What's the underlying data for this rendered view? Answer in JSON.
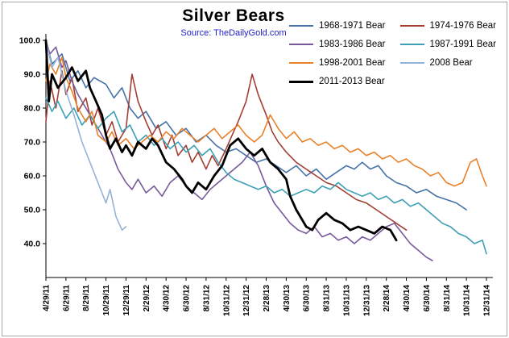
{
  "chart_data": {
    "type": "line",
    "title": "Silver Bears",
    "source": "Source: TheDailyGold.com",
    "xlabel": "",
    "ylabel": "",
    "ylim": [
      30,
      100
    ],
    "yticks": [
      40,
      50,
      60,
      70,
      80,
      90,
      100
    ],
    "ytick_labels": [
      "40.0",
      "50.0",
      "60.0",
      "70.0",
      "80.0",
      "90.0",
      "100.0"
    ],
    "grid": false,
    "legend_position": "top-right",
    "x_tick_labels": [
      "4/29/11",
      "6/29/11",
      "8/29/11",
      "10/29/11",
      "12/29/11",
      "2/29/12",
      "4/30/12",
      "6/30/12",
      "8/31/12",
      "10/31/12",
      "12/31/12",
      "2/28/13",
      "4/30/13",
      "6/30/13",
      "8/31/13",
      "10/31/13",
      "12/31/13",
      "2/28/14",
      "4/30/14",
      "6/30/14",
      "8/31/14",
      "10/31/14",
      "12/31/14"
    ],
    "series": [
      {
        "name": "1968-1971 Bear",
        "color": "#4572A7",
        "width": 1.6,
        "x": [
          0,
          0.3,
          0.8,
          1.2,
          1.6,
          2.0,
          2.4,
          3.0,
          3.4,
          3.8,
          4.2,
          4.6,
          5.0,
          5.5,
          6.0,
          6.5,
          7.0,
          7.5,
          8.0,
          8.5,
          9.0,
          9.5,
          10.0,
          10.5,
          11.0,
          11.5,
          12.0,
          12.5,
          13.0,
          13.5,
          14.0,
          14.5,
          15.0,
          15.4,
          15.8,
          16.2,
          16.6,
          17.0,
          17.5,
          18.0,
          18.5,
          19.0,
          19.5,
          20.0,
          20.5,
          21.0
        ],
        "values": [
          100,
          93,
          96,
          88,
          91,
          86,
          89,
          87,
          83,
          86,
          80,
          77,
          79,
          74,
          76,
          72,
          74,
          70,
          72,
          69,
          67,
          68,
          66,
          64,
          65,
          63,
          61,
          63,
          60,
          62,
          59,
          61,
          63,
          62,
          64,
          62,
          63,
          60,
          58,
          57,
          55,
          56,
          54,
          53,
          52,
          50
        ]
      },
      {
        "name": "1974-1976 Bear",
        "color": "#A33E33",
        "width": 1.6,
        "x": [
          0,
          0.2,
          0.5,
          0.8,
          1.0,
          1.3,
          1.6,
          2.0,
          2.3,
          2.6,
          3.0,
          3.3,
          3.6,
          4.0,
          4.3,
          4.6,
          5.0,
          5.3,
          5.6,
          6.0,
          6.3,
          6.6,
          7.0,
          7.3,
          7.6,
          8.0,
          8.3,
          8.6,
          9.0,
          9.3,
          9.6,
          10.0,
          10.3,
          10.6,
          11.0,
          11.3,
          11.6,
          12.0,
          12.5,
          13.0,
          13.5,
          14.0,
          14.5,
          15.0,
          15.5,
          16.0,
          16.5,
          17.0,
          17.5,
          18.0
        ],
        "values": [
          76,
          88,
          80,
          91,
          84,
          89,
          79,
          83,
          75,
          80,
          72,
          76,
          70,
          74,
          90,
          82,
          76,
          72,
          75,
          68,
          72,
          66,
          69,
          64,
          67,
          62,
          66,
          63,
          68,
          72,
          76,
          82,
          90,
          84,
          78,
          73,
          70,
          67,
          64,
          62,
          60,
          58,
          57,
          55,
          53,
          52,
          50,
          48,
          46,
          44
        ]
      },
      {
        "name": "1983-1986 Bear",
        "color": "#775A9B",
        "width": 1.6,
        "x": [
          0,
          0.2,
          0.5,
          0.8,
          1.0,
          1.3,
          1.6,
          2.0,
          2.4,
          2.8,
          3.2,
          3.6,
          4.0,
          4.3,
          4.6,
          5.0,
          5.4,
          5.8,
          6.2,
          6.6,
          7.0,
          7.4,
          7.8,
          8.2,
          8.6,
          9.0,
          9.4,
          9.8,
          10.2,
          10.6,
          11.0,
          11.4,
          11.8,
          12.2,
          12.6,
          13.0,
          13.4,
          13.8,
          14.2,
          14.6,
          15.0,
          15.4,
          15.8,
          16.2,
          16.6,
          17.0,
          17.4,
          17.8,
          18.2,
          18.6,
          19.0,
          19.3
        ],
        "values": [
          100,
          96,
          98,
          92,
          94,
          88,
          84,
          80,
          76,
          72,
          68,
          62,
          58,
          56,
          59,
          55,
          57,
          54,
          58,
          60,
          57,
          55,
          53,
          56,
          58,
          60,
          62,
          64,
          67,
          63,
          57,
          52,
          49,
          46,
          44,
          43,
          45,
          42,
          43,
          41,
          42,
          40,
          42,
          41,
          43,
          45,
          46,
          43,
          40,
          38,
          36,
          35
        ]
      },
      {
        "name": "1987-1991 Bear",
        "color": "#3BA0B5",
        "width": 1.6,
        "x": [
          0,
          0.3,
          0.6,
          1.0,
          1.4,
          1.8,
          2.2,
          2.6,
          3.0,
          3.4,
          3.8,
          4.2,
          4.6,
          5.0,
          5.4,
          5.8,
          6.2,
          6.6,
          7.0,
          7.4,
          7.8,
          8.2,
          8.6,
          9.0,
          9.4,
          9.8,
          10.2,
          10.6,
          11.0,
          11.4,
          11.8,
          12.2,
          12.6,
          13.0,
          13.4,
          13.8,
          14.2,
          14.6,
          15.0,
          15.4,
          15.8,
          16.2,
          16.6,
          17.0,
          17.4,
          17.8,
          18.2,
          18.6,
          19.0,
          19.4,
          19.8,
          20.2,
          20.6,
          21.0,
          21.4,
          21.8,
          22.0
        ],
        "values": [
          83,
          79,
          82,
          77,
          80,
          75,
          78,
          74,
          77,
          79,
          73,
          75,
          70,
          72,
          69,
          71,
          68,
          70,
          67,
          69,
          66,
          68,
          64,
          61,
          59,
          58,
          57,
          56,
          57,
          55,
          56,
          54,
          55,
          56,
          55,
          57,
          56,
          58,
          56,
          55,
          54,
          55,
          53,
          54,
          52,
          53,
          51,
          52,
          50,
          48,
          46,
          45,
          43,
          42,
          40,
          41,
          37
        ]
      },
      {
        "name": "1998-2001 Bear",
        "color": "#E8822A",
        "width": 1.6,
        "x": [
          0,
          0.2,
          0.5,
          0.8,
          1.0,
          1.3,
          1.6,
          2.0,
          2.3,
          2.6,
          3.0,
          3.3,
          3.6,
          4.0,
          4.4,
          4.8,
          5.2,
          5.6,
          6.0,
          6.4,
          6.8,
          7.2,
          7.6,
          8.0,
          8.4,
          8.8,
          9.2,
          9.6,
          10.0,
          10.4,
          10.8,
          11.2,
          11.6,
          12.0,
          12.4,
          12.8,
          13.2,
          13.6,
          14.0,
          14.4,
          14.8,
          15.2,
          15.6,
          16.0,
          16.4,
          16.8,
          17.2,
          17.6,
          18.0,
          18.4,
          18.8,
          19.2,
          19.6,
          20.0,
          20.4,
          20.8,
          21.2,
          21.5,
          21.8,
          22.0
        ],
        "values": [
          88,
          93,
          90,
          95,
          89,
          85,
          80,
          76,
          79,
          72,
          70,
          73,
          69,
          71,
          68,
          70,
          72,
          70,
          73,
          71,
          74,
          72,
          70,
          72,
          74,
          71,
          73,
          75,
          72,
          70,
          72,
          78,
          74,
          71,
          73,
          70,
          71,
          69,
          70,
          68,
          69,
          67,
          68,
          66,
          67,
          65,
          66,
          64,
          65,
          63,
          62,
          60,
          61,
          58,
          57,
          58,
          64,
          65,
          60,
          57
        ]
      },
      {
        "name": "2008 Bear",
        "color": "#95B3D7",
        "width": 1.6,
        "x": [
          0,
          0.3,
          0.6,
          1.0,
          1.4,
          1.8,
          2.2,
          2.6,
          3.0,
          3.2,
          3.5,
          3.8,
          4.0
        ],
        "values": [
          100,
          92,
          95,
          85,
          78,
          70,
          64,
          58,
          52,
          56,
          48,
          44,
          45
        ]
      },
      {
        "name": "2011-2013 Bear",
        "color": "#000000",
        "width": 2.8,
        "x": [
          0,
          0.15,
          0.3,
          0.6,
          1.0,
          1.3,
          1.6,
          2.0,
          2.2,
          2.5,
          2.8,
          3.0,
          3.2,
          3.5,
          3.8,
          4.0,
          4.3,
          4.6,
          5.0,
          5.3,
          5.6,
          6.0,
          6.4,
          6.8,
          7.0,
          7.3,
          7.6,
          8.0,
          8.4,
          8.8,
          9.2,
          9.6,
          10.0,
          10.4,
          10.8,
          11.2,
          11.6,
          12.0,
          12.2,
          12.5,
          12.8,
          13.0,
          13.3,
          13.6,
          14.0,
          14.4,
          14.8,
          15.2,
          15.6,
          16.0,
          16.4,
          16.8,
          17.2,
          17.5
        ],
        "values": [
          100,
          82,
          90,
          86,
          89,
          92,
          88,
          91,
          86,
          82,
          78,
          72,
          68,
          71,
          67,
          69,
          66,
          70,
          68,
          71,
          69,
          64,
          62,
          59,
          57,
          55,
          58,
          56,
          60,
          63,
          69,
          71,
          68,
          66,
          68,
          64,
          62,
          59,
          54,
          50,
          47,
          45,
          44,
          47,
          49,
          47,
          46,
          44,
          45,
          44,
          43,
          45,
          44,
          41
        ]
      }
    ]
  }
}
